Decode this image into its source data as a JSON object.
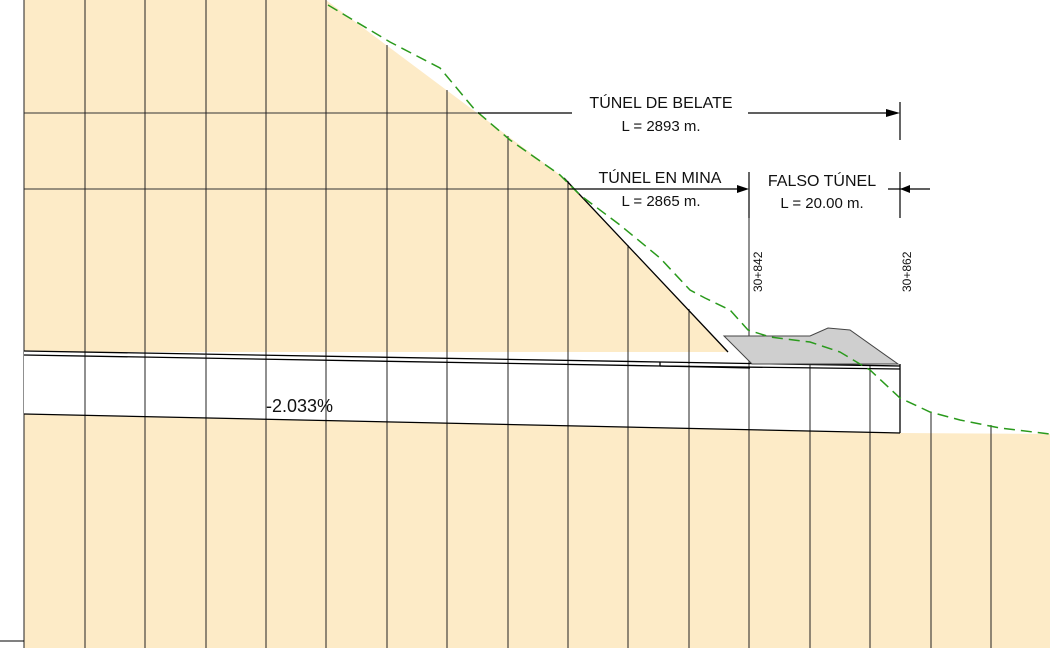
{
  "labels": {
    "tunnel_total": "TÚNEL DE BELATE",
    "tunnel_total_length": "L = 2893 m.",
    "tunnel_mined": "TÚNEL EN MINA",
    "tunnel_mined_length": "L = 2865 m.",
    "false_tunnel": "FALSO TÚNEL",
    "false_tunnel_length": "L = 20.00 m.",
    "gradient": "-2.033%"
  },
  "chainages": [
    "30+842",
    "30+862"
  ],
  "colors": {
    "ground_fill": "#fdebc7",
    "tunnel_fill": "#ffffff",
    "grid_line": "#222222",
    "terrain_line": "#2a9a1c",
    "portal_fill": "#cfcfcf",
    "line": "#000000"
  },
  "terrain_line_style": "dashed"
}
